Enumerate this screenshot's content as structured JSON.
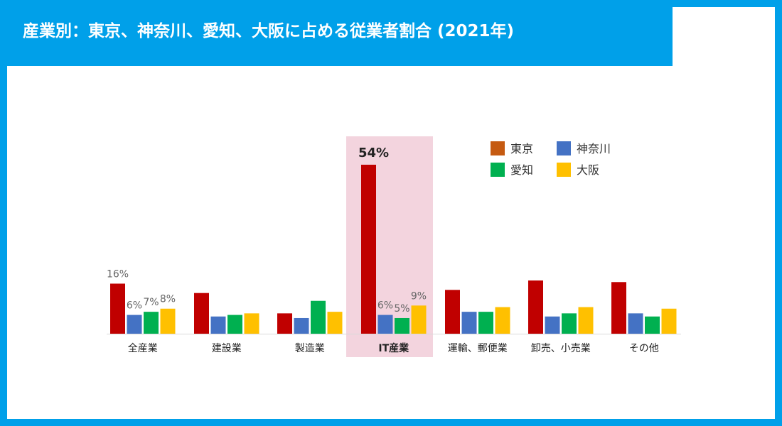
{
  "title": "産業別：東京、神奈川、愛知、大阪に占める従業者割合 (2021年)",
  "colors": {
    "background": "#00a0e9",
    "highlight": "#f3d4de",
    "series": [
      "#c00000",
      "#4472c4",
      "#00b050",
      "#ffc000"
    ],
    "legend_tokyo": "#c55a11"
  },
  "chart_data": {
    "type": "bar",
    "categories": [
      "全産業",
      "建設業",
      "製造業",
      "IT産業",
      "運輸、郵便業",
      "卸売、小売業",
      "その他"
    ],
    "highlighted_category": "IT産業",
    "series": [
      {
        "name": "東京",
        "values": [
          16,
          13,
          6.5,
          54,
          14,
          17,
          16.5
        ]
      },
      {
        "name": "神奈川",
        "values": [
          6,
          5.5,
          5,
          6,
          7,
          5.5,
          6.5
        ]
      },
      {
        "name": "愛知",
        "values": [
          7,
          6,
          10.5,
          5,
          7,
          6.5,
          5.5
        ]
      },
      {
        "name": "大阪",
        "values": [
          8,
          6.5,
          7,
          9,
          8.5,
          8.5,
          8
        ]
      }
    ],
    "data_labels": [
      {
        "category": "全産業",
        "series": "東京",
        "text": "16%"
      },
      {
        "category": "全産業",
        "series": "神奈川",
        "text": "6%"
      },
      {
        "category": "全産業",
        "series": "愛知",
        "text": "7%"
      },
      {
        "category": "全産業",
        "series": "大阪",
        "text": "8%"
      },
      {
        "category": "IT産業",
        "series": "東京",
        "text": "54%",
        "bold": true
      },
      {
        "category": "IT産業",
        "series": "神奈川",
        "text": "6%"
      },
      {
        "category": "IT産業",
        "series": "愛知",
        "text": "5%"
      },
      {
        "category": "IT産業",
        "series": "大阪",
        "text": "9%"
      }
    ],
    "legend_position": "top-right",
    "grid": false,
    "ylim": [
      0,
      60
    ],
    "xlabel": "",
    "ylabel": ""
  }
}
